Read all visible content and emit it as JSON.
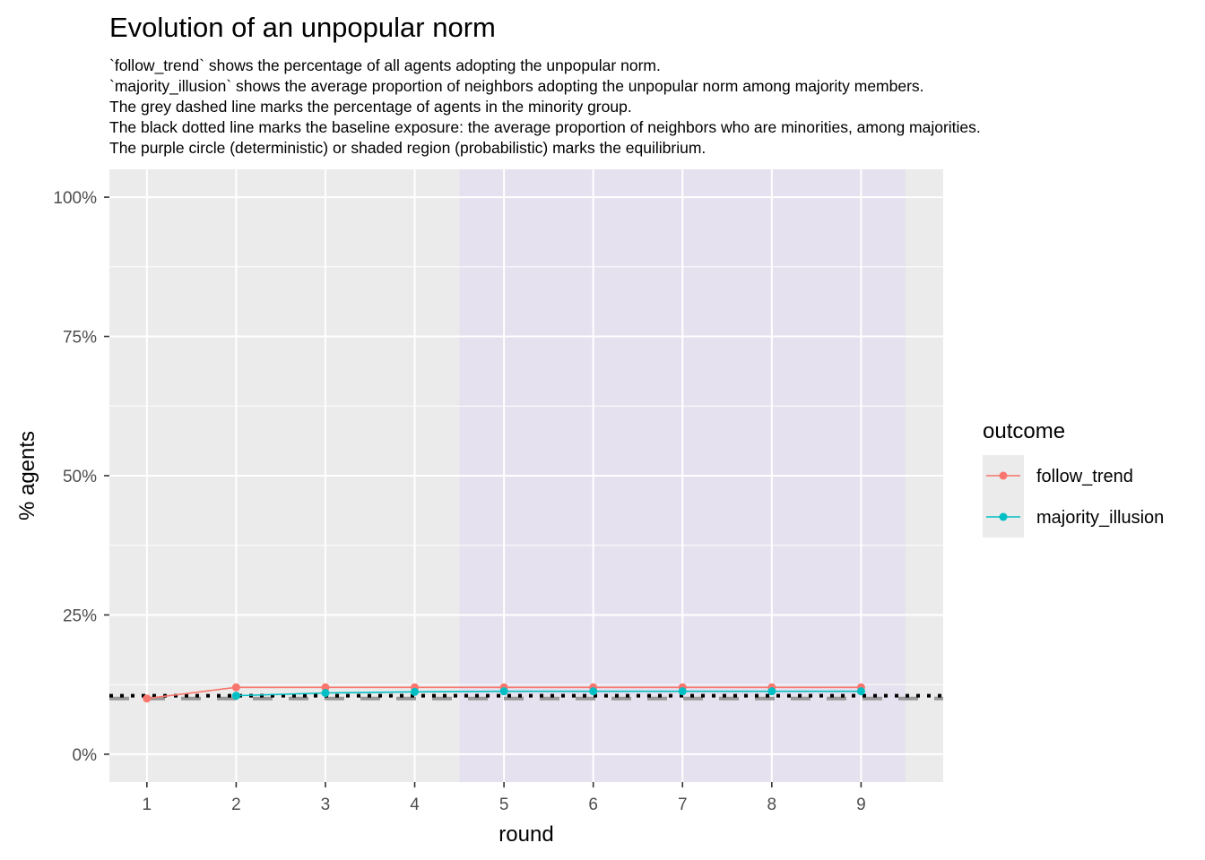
{
  "chart_data": {
    "type": "line",
    "title": "Evolution of an unpopular norm",
    "subtitle_lines": [
      "`follow_trend` shows the percentage of all agents adopting the unpopular norm.",
      "`majority_illusion` shows the average proportion of neighbors adopting the unpopular norm among majority members.",
      "The grey dashed line marks the percentage of agents in the minority group.",
      "The black dotted line marks the baseline exposure: the average proportion of neighbors who are minorities, among majorities.",
      "The purple circle (deterministic) or shaded region (probabilistic) marks the equilibrium."
    ],
    "xlabel": "round",
    "ylabel": "% agents",
    "x_ticks": [
      1,
      2,
      3,
      4,
      5,
      6,
      7,
      8,
      9
    ],
    "x_tick_labels": [
      "1",
      "2",
      "3",
      "4",
      "5",
      "6",
      "7",
      "8",
      "9"
    ],
    "y_ticks": [
      0,
      0.25,
      0.5,
      0.75,
      1
    ],
    "y_tick_labels": [
      "0%",
      "25%",
      "50%",
      "75%",
      "100%"
    ],
    "xlim": [
      0.58,
      9.92
    ],
    "ylim": [
      -0.05,
      1.05
    ],
    "grid": true,
    "legend": {
      "title": "outcome",
      "position": "right",
      "entries": [
        "follow_trend",
        "majority_illusion"
      ]
    },
    "series": [
      {
        "name": "follow_trend",
        "color": "#F8766D",
        "x": [
          1,
          2,
          3,
          4,
          5,
          6,
          7,
          8,
          9
        ],
        "values": [
          0.1,
          0.12,
          0.12,
          0.12,
          0.12,
          0.12,
          0.12,
          0.12,
          0.12
        ]
      },
      {
        "name": "majority_illusion",
        "color": "#00BFC4",
        "x": [
          2,
          3,
          4,
          5,
          6,
          7,
          8,
          9
        ],
        "values": [
          0.105,
          0.11,
          0.112,
          0.113,
          0.113,
          0.113,
          0.113,
          0.113
        ]
      }
    ],
    "reference_lines": {
      "minority_share": {
        "y": 0.1,
        "color": "#999999",
        "style": "dashed"
      },
      "baseline_exposure": {
        "y": 0.105,
        "color": "#000000",
        "style": "dotted"
      }
    },
    "equilibrium_region": {
      "x_start": 4.5,
      "x_end": 9.5,
      "color": "#E6E0EE"
    },
    "panel_background": "#EBEBEB"
  }
}
